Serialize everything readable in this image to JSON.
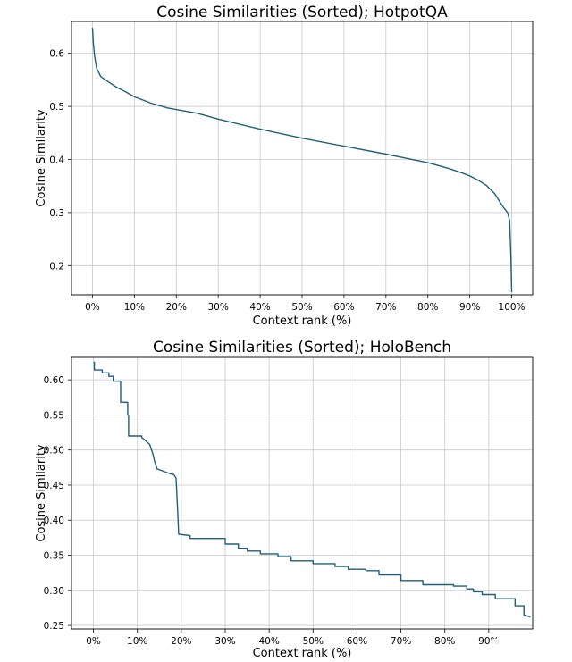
{
  "chart_data": [
    {
      "type": "line",
      "title": "Cosine Similarities (Sorted); HotpotQA",
      "xlabel": "Context rank (%)",
      "ylabel": "Cosine Similarity",
      "xlim": [
        -5,
        105
      ],
      "ylim": [
        0.145,
        0.66
      ],
      "x_ticks": [
        0,
        10,
        20,
        30,
        40,
        50,
        60,
        70,
        80,
        90,
        100
      ],
      "x_tick_labels": [
        "0%",
        "10%",
        "20%",
        "30%",
        "40%",
        "50%",
        "60%",
        "70%",
        "80%",
        "90%",
        "100%"
      ],
      "y_ticks": [
        0.2,
        0.3,
        0.4,
        0.5,
        0.6
      ],
      "y_tick_labels": [
        "0.2",
        "0.3",
        "0.4",
        "0.5",
        "0.6"
      ],
      "grid": true,
      "legend": false,
      "color": "#1f5f7a",
      "series": [
        {
          "x": [
            0,
            0.2,
            0.5,
            1,
            2,
            4,
            6,
            8,
            10,
            14,
            18,
            25,
            30,
            40,
            50,
            60,
            70,
            75,
            80,
            85,
            88,
            90,
            92,
            94,
            96,
            97,
            98,
            99,
            99.5,
            99.8,
            100
          ],
          "y": [
            0.648,
            0.62,
            0.595,
            0.572,
            0.556,
            0.545,
            0.535,
            0.527,
            0.518,
            0.506,
            0.497,
            0.487,
            0.476,
            0.457,
            0.44,
            0.425,
            0.41,
            0.402,
            0.394,
            0.383,
            0.375,
            0.369,
            0.361,
            0.351,
            0.335,
            0.322,
            0.31,
            0.3,
            0.285,
            0.22,
            0.15
          ]
        }
      ]
    },
    {
      "type": "line",
      "title": "Cosine Similarities (Sorted); HoloBench",
      "xlabel": "Context rank (%)",
      "ylabel": "Cosine Similarity",
      "xlim": [
        -5,
        100
      ],
      "ylim": [
        0.245,
        0.632
      ],
      "x_ticks": [
        0,
        10,
        20,
        30,
        40,
        50,
        60,
        70,
        80,
        90
      ],
      "x_tick_labels": [
        "0%",
        "10%",
        "20%",
        "30%",
        "40%",
        "50%",
        "60%",
        "70%",
        "80%",
        "90%"
      ],
      "y_ticks": [
        0.25,
        0.3,
        0.35,
        0.4,
        0.45,
        0.5,
        0.55,
        0.6
      ],
      "y_tick_labels": [
        "0.25",
        "0.30",
        "0.35",
        "0.40",
        "0.45",
        "0.50",
        "0.55",
        "0.60"
      ],
      "grid": true,
      "legend": false,
      "color": "#1f5f7a",
      "series": [
        {
          "x": [
            0,
            0.2,
            0.2,
            2,
            2,
            3.5,
            3.5,
            4.5,
            4.5,
            6.2,
            6.2,
            7.8,
            7.8,
            8,
            8,
            11,
            11,
            12.8,
            13.5,
            14,
            14.5,
            17.5,
            18.3,
            18.8,
            19.2,
            19.4,
            19.4,
            22,
            22,
            30,
            30,
            33,
            33,
            35,
            35,
            38,
            38,
            42,
            42,
            45,
            45,
            50,
            50,
            55,
            55,
            58,
            58,
            62,
            62,
            65,
            65,
            70,
            70,
            75,
            75,
            82,
            82,
            85,
            85,
            86.5,
            86.5,
            88.5,
            88.5,
            91.5,
            91.5,
            96,
            96,
            98,
            98,
            99.5
          ],
          "y": [
            0.625,
            0.625,
            0.614,
            0.614,
            0.61,
            0.61,
            0.605,
            0.605,
            0.598,
            0.598,
            0.568,
            0.568,
            0.55,
            0.55,
            0.52,
            0.52,
            0.518,
            0.508,
            0.495,
            0.482,
            0.473,
            0.466,
            0.465,
            0.46,
            0.41,
            0.38,
            0.38,
            0.378,
            0.374,
            0.374,
            0.366,
            0.366,
            0.36,
            0.36,
            0.356,
            0.356,
            0.352,
            0.352,
            0.348,
            0.348,
            0.342,
            0.342,
            0.338,
            0.338,
            0.334,
            0.334,
            0.33,
            0.33,
            0.328,
            0.328,
            0.322,
            0.322,
            0.314,
            0.314,
            0.308,
            0.308,
            0.306,
            0.306,
            0.302,
            0.302,
            0.298,
            0.298,
            0.294,
            0.294,
            0.288,
            0.288,
            0.278,
            0.278,
            0.265,
            0.262
          ]
        }
      ]
    }
  ]
}
